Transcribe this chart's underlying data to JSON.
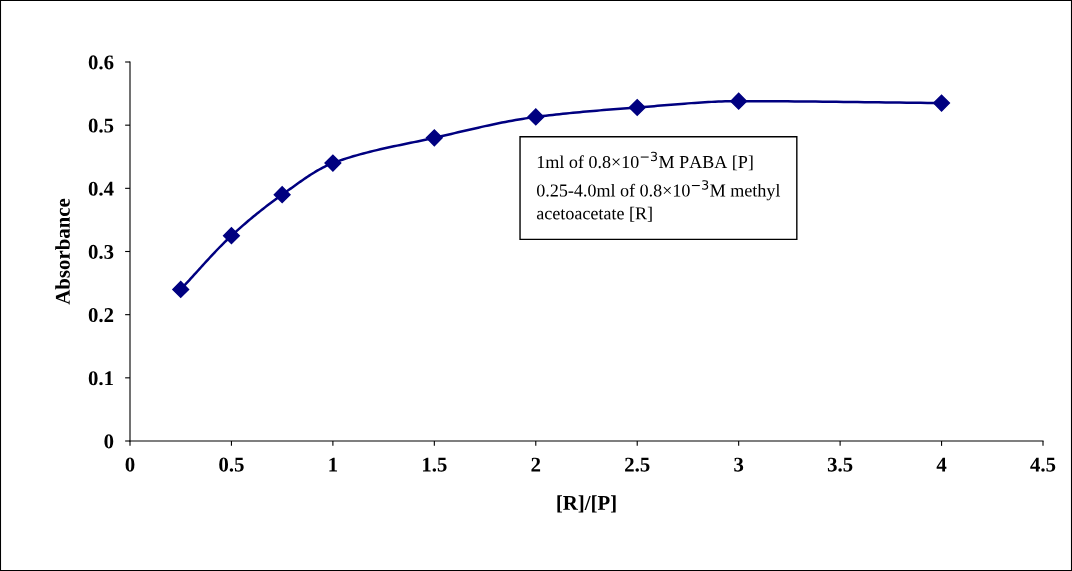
{
  "chart_data": {
    "type": "line",
    "xlabel": "[R]/[P]",
    "ylabel": "Absorbance",
    "x": [
      0.25,
      0.5,
      0.75,
      1,
      1.5,
      2,
      2.5,
      3,
      4
    ],
    "series": [
      {
        "color": "#000080",
        "values": [
          0.24,
          0.325,
          0.39,
          0.44,
          0.48,
          0.513,
          0.528,
          0.538,
          0.535
        ]
      }
    ],
    "xlim": [
      0,
      4.5
    ],
    "xticks": [
      0,
      0.5,
      1,
      1.5,
      2,
      2.5,
      3,
      3.5,
      4,
      4.5
    ],
    "ylim": [
      0,
      0.6
    ],
    "yticks": [
      0,
      0.1,
      0.2,
      0.3,
      0.4,
      0.5,
      0.6
    ],
    "marker": "diamond",
    "line_style": "solid",
    "grid": false,
    "legend": false,
    "annotations": [
      "1ml of 0.8×10$^{−3}$M PABA [P]\n0.25-4.0ml of 0.8×10$^{−3}$M methyl\nacetoacetate [R]"
    ]
  }
}
